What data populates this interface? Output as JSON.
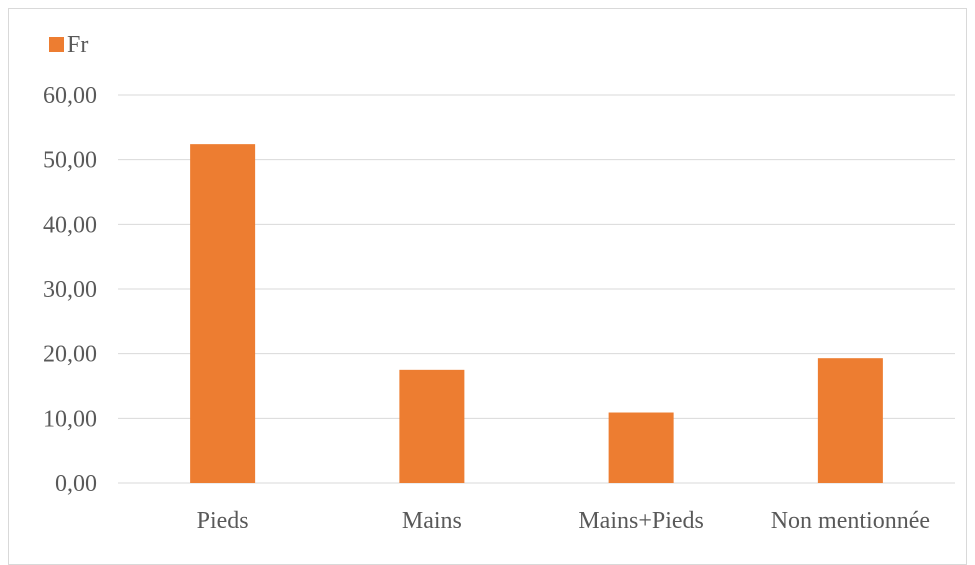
{
  "chart_data": {
    "type": "bar",
    "categories": [
      "Pieds",
      "Mains",
      "Mains+Pieds",
      "Non mentionnée"
    ],
    "series": [
      {
        "name": "Fr",
        "values": [
          52.4,
          17.5,
          10.9,
          19.3
        ],
        "color": "#ED7D31"
      }
    ],
    "ylim": [
      0,
      60
    ],
    "yticks": [
      "0,00",
      "10,00",
      "20,00",
      "30,00",
      "40,00",
      "50,00",
      "60,00"
    ],
    "ytick_values": [
      0,
      10,
      20,
      30,
      40,
      50,
      60
    ],
    "grid": true,
    "legend_position": "top-left",
    "gridline_color": "#d9d9d9",
    "text_color": "#595959"
  }
}
